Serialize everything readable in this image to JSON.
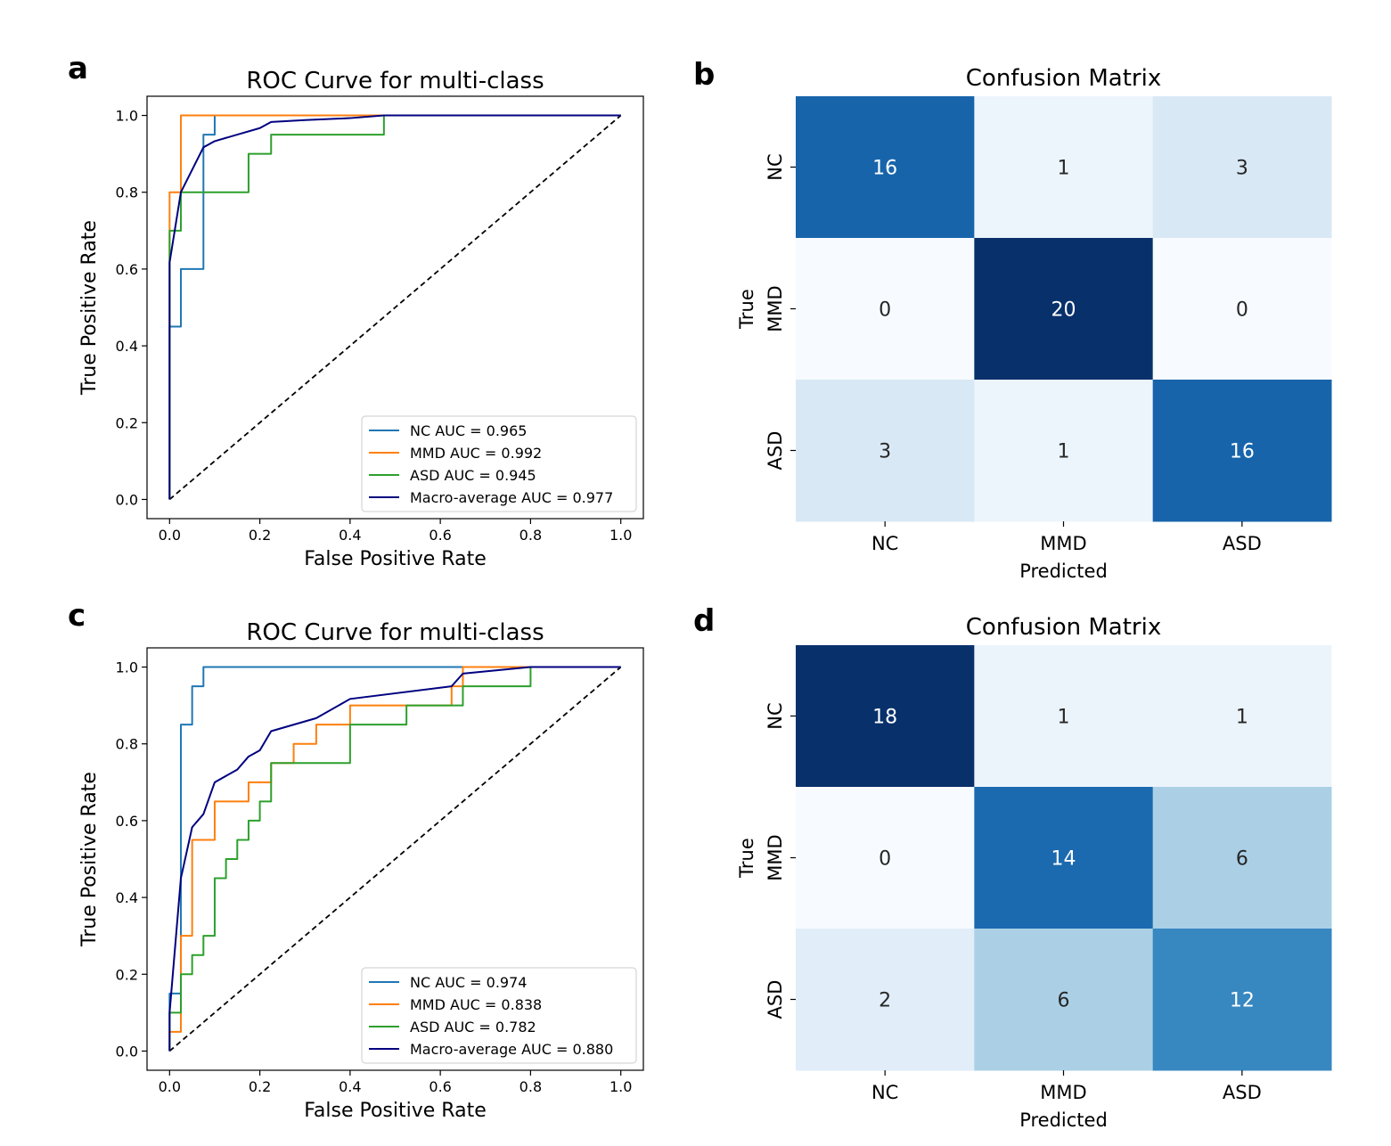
{
  "panels": [
    "a",
    "b",
    "c",
    "d"
  ],
  "chart_data": [
    {
      "panel": "a",
      "type": "line",
      "title": "ROC Curve for multi-class",
      "xlabel": "False Positive Rate",
      "ylabel": "True Positive Rate",
      "xlim": [
        -0.05,
        1.05
      ],
      "ylim": [
        -0.05,
        1.05
      ],
      "xticks": [
        "0.0",
        "0.2",
        "0.4",
        "0.6",
        "0.8",
        "1.0"
      ],
      "yticks": [
        "0.0",
        "0.2",
        "0.4",
        "0.6",
        "0.8",
        "1.0"
      ],
      "grid": false,
      "legend_position": "lower-right",
      "series": [
        {
          "name": "NC AUC = 0.965",
          "color": "#1f77b4",
          "x": [
            0,
            0,
            0.025,
            0.025,
            0.075,
            0.075,
            0.1,
            0.1,
            1.0
          ],
          "y": [
            0,
            0.45,
            0.45,
            0.6,
            0.6,
            0.95,
            0.95,
            1.0,
            1.0
          ]
        },
        {
          "name": "MMD AUC = 0.992",
          "color": "#ff7f0e",
          "x": [
            0,
            0,
            0.025,
            0.025,
            1.0
          ],
          "y": [
            0,
            0.8,
            0.8,
            1.0,
            1.0
          ]
        },
        {
          "name": "ASD AUC = 0.945",
          "color": "#2ca02c",
          "x": [
            0,
            0,
            0.025,
            0.025,
            0.175,
            0.175,
            0.225,
            0.225,
            0.475,
            0.475,
            1.0
          ],
          "y": [
            0,
            0.7,
            0.7,
            0.8,
            0.8,
            0.9,
            0.9,
            0.95,
            0.95,
            1.0,
            1.0
          ]
        },
        {
          "name": "Macro-average AUC = 0.977",
          "color": "#000080",
          "x": [
            0,
            0,
            0.025,
            0.075,
            0.1,
            0.15,
            0.2,
            0.225,
            0.3,
            0.4,
            0.475,
            1.0
          ],
          "y": [
            0,
            0.617,
            0.8,
            0.917,
            0.933,
            0.95,
            0.967,
            0.983,
            0.988,
            0.993,
            1.0,
            1.0
          ]
        }
      ],
      "diagonal": {
        "x": [
          0,
          1
        ],
        "y": [
          0,
          1
        ],
        "color": "#000000",
        "style": "dashed"
      }
    },
    {
      "panel": "b",
      "type": "heatmap",
      "title": "Confusion Matrix",
      "xlabel": "Predicted",
      "ylabel": "True",
      "x_categories": [
        "NC",
        "MMD",
        "ASD"
      ],
      "y_categories": [
        "NC",
        "MMD",
        "ASD"
      ],
      "values": [
        [
          16,
          1,
          3
        ],
        [
          0,
          20,
          0
        ],
        [
          3,
          1,
          16
        ]
      ],
      "colormap": "Blues",
      "vmin": 0,
      "vmax": 20
    },
    {
      "panel": "c",
      "type": "line",
      "title": "ROC Curve for multi-class",
      "xlabel": "False Positive Rate",
      "ylabel": "True Positive Rate",
      "xlim": [
        -0.05,
        1.05
      ],
      "ylim": [
        -0.05,
        1.05
      ],
      "xticks": [
        "0.0",
        "0.2",
        "0.4",
        "0.6",
        "0.8",
        "1.0"
      ],
      "yticks": [
        "0.0",
        "0.2",
        "0.4",
        "0.6",
        "0.8",
        "1.0"
      ],
      "grid": false,
      "legend_position": "lower-right",
      "series": [
        {
          "name": "NC AUC = 0.974",
          "color": "#1f77b4",
          "x": [
            0,
            0,
            0.025,
            0.025,
            0.05,
            0.05,
            0.075,
            0.075,
            1.0
          ],
          "y": [
            0,
            0.15,
            0.15,
            0.85,
            0.85,
            0.95,
            0.95,
            1.0,
            1.0
          ]
        },
        {
          "name": "MMD AUC = 0.838",
          "color": "#ff7f0e",
          "x": [
            0,
            0,
            0.025,
            0.025,
            0.05,
            0.05,
            0.1,
            0.1,
            0.175,
            0.175,
            0.225,
            0.225,
            0.275,
            0.275,
            0.325,
            0.325,
            0.4,
            0.4,
            0.625,
            0.625,
            0.65,
            0.65,
            0.8,
            0.8,
            1.0
          ],
          "y": [
            0,
            0.05,
            0.05,
            0.3,
            0.3,
            0.55,
            0.55,
            0.65,
            0.65,
            0.7,
            0.7,
            0.75,
            0.75,
            0.8,
            0.8,
            0.85,
            0.85,
            0.9,
            0.9,
            0.95,
            0.95,
            1.0,
            1.0,
            1.0,
            1.0
          ]
        },
        {
          "name": "ASD AUC = 0.782",
          "color": "#2ca02c",
          "x": [
            0,
            0,
            0.025,
            0.025,
            0.05,
            0.05,
            0.075,
            0.075,
            0.1,
            0.1,
            0.125,
            0.125,
            0.15,
            0.15,
            0.175,
            0.175,
            0.2,
            0.2,
            0.225,
            0.225,
            0.4,
            0.4,
            0.525,
            0.525,
            0.65,
            0.65,
            0.8,
            0.8,
            1.0
          ],
          "y": [
            0,
            0.1,
            0.1,
            0.2,
            0.2,
            0.25,
            0.25,
            0.3,
            0.3,
            0.45,
            0.45,
            0.5,
            0.5,
            0.55,
            0.55,
            0.6,
            0.6,
            0.65,
            0.65,
            0.75,
            0.75,
            0.85,
            0.85,
            0.9,
            0.9,
            0.95,
            0.95,
            1.0,
            1.0
          ]
        },
        {
          "name": "Macro-average AUC = 0.880",
          "color": "#000080",
          "x": [
            0,
            0,
            0.025,
            0.05,
            0.075,
            0.1,
            0.15,
            0.175,
            0.2,
            0.225,
            0.325,
            0.4,
            0.625,
            0.65,
            0.8,
            1.0
          ],
          "y": [
            0,
            0.1,
            0.45,
            0.583,
            0.617,
            0.7,
            0.733,
            0.767,
            0.783,
            0.833,
            0.867,
            0.917,
            0.95,
            0.983,
            1.0,
            1.0
          ]
        }
      ],
      "diagonal": {
        "x": [
          0,
          1
        ],
        "y": [
          0,
          1
        ],
        "color": "#000000",
        "style": "dashed"
      }
    },
    {
      "panel": "d",
      "type": "heatmap",
      "title": "Confusion Matrix",
      "xlabel": "Predicted",
      "ylabel": "True",
      "x_categories": [
        "NC",
        "MMD",
        "ASD"
      ],
      "y_categories": [
        "NC",
        "MMD",
        "ASD"
      ],
      "values": [
        [
          18,
          1,
          1
        ],
        [
          0,
          14,
          6
        ],
        [
          2,
          6,
          12
        ]
      ],
      "colormap": "Blues",
      "vmin": 0,
      "vmax": 18
    }
  ]
}
